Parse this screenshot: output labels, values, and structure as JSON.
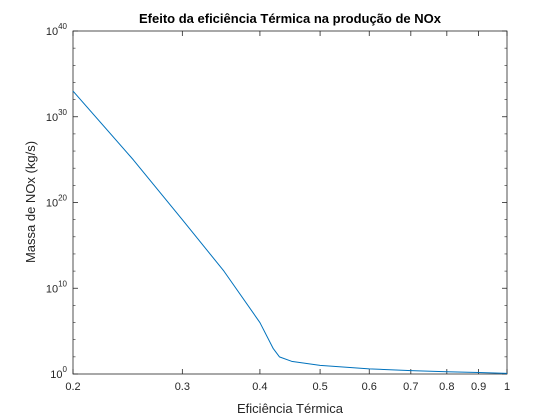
{
  "chart_data": {
    "type": "line",
    "title": "Efeito da eficiência Térmica na produção de NOx",
    "xlabel": "Eficiência Térmica",
    "ylabel": "Massa de NOx (kg/s)",
    "xscale": "log",
    "yscale": "log",
    "xlim": [
      0.2,
      1.0
    ],
    "ylim": [
      1,
      1e+40
    ],
    "grid": false,
    "x_ticks": [
      "0.2",
      "0.3",
      "0.4",
      "0.5",
      "0.6",
      "0.7",
      "0.8",
      "0.9",
      "1"
    ],
    "x_tick_values": [
      0.2,
      0.3,
      0.4,
      0.5,
      0.6,
      0.7,
      0.8,
      0.9,
      1.0
    ],
    "y_ticks": [
      {
        "value": 1,
        "base": "10",
        "exp": "0"
      },
      {
        "value": 10000000000.0,
        "base": "10",
        "exp": "10"
      },
      {
        "value": 1e+20,
        "base": "10",
        "exp": "20"
      },
      {
        "value": 1e+30,
        "base": "10",
        "exp": "30"
      },
      {
        "value": 1e+40,
        "base": "10",
        "exp": "40"
      }
    ],
    "series": [
      {
        "color": "#0072BD",
        "x": [
          0.2,
          0.25,
          0.3,
          0.35,
          0.4,
          0.42,
          0.43,
          0.45,
          0.5,
          0.6,
          0.7,
          0.8,
          0.9,
          1.0
        ],
        "y": [
          1e+33,
          1e+25,
          1e+18,
          1000000000000.0,
          1000000.0,
          1000.0,
          100.0,
          30,
          10,
          4,
          2.5,
          1.8,
          1.5,
          1.2
        ]
      }
    ]
  }
}
